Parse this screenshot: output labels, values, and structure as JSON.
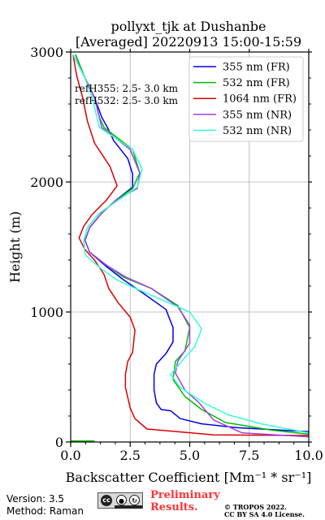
{
  "chart_data": {
    "type": "line",
    "title": "pollyxt_tjk at Dushanbe",
    "subtitle": "[Averaged] 20220913 15:00-15:59",
    "xlabel": "Backscatter Coefficient [Mm⁻¹ * sr⁻¹]",
    "ylabel": "Height (m)",
    "xlim": [
      0,
      10
    ],
    "ylim": [
      0,
      3000
    ],
    "xticks": [
      0,
      2.5,
      5,
      7.5,
      10
    ],
    "xtick_labels": [
      "0.0",
      "2.5",
      "5.0",
      "7.5",
      "10.0"
    ],
    "yticks": [
      0,
      1000,
      2000,
      3000
    ],
    "ytick_labels": [
      "0",
      "1000",
      "2000",
      "3000"
    ],
    "grid": true,
    "legend_position": "top-right",
    "annotations": [
      "refH355:  2.5- 3.0 km",
      "refH532:  2.5- 3.0 km"
    ],
    "series": [
      {
        "name": "355 nm (FR)",
        "color": "#0000ee",
        "points": [
          [
            10.0,
            80
          ],
          [
            7.0,
            110
          ],
          [
            5.5,
            140
          ],
          [
            4.6,
            180
          ],
          [
            4.2,
            240
          ],
          [
            3.8,
            250
          ],
          [
            3.6,
            300
          ],
          [
            3.5,
            400
          ],
          [
            3.5,
            520
          ],
          [
            3.6,
            600
          ],
          [
            4.0,
            680
          ],
          [
            4.3,
            770
          ],
          [
            4.3,
            880
          ],
          [
            4.0,
            1020
          ],
          [
            3.0,
            1150
          ],
          [
            2.2,
            1250
          ],
          [
            1.5,
            1350
          ],
          [
            0.8,
            1460
          ],
          [
            0.6,
            1550
          ],
          [
            0.8,
            1650
          ],
          [
            1.3,
            1760
          ],
          [
            1.9,
            1860
          ],
          [
            2.6,
            1960
          ],
          [
            2.6,
            2060
          ],
          [
            2.4,
            2180
          ],
          [
            1.8,
            2320
          ],
          [
            1.6,
            2400
          ],
          [
            1.3,
            2500
          ],
          [
            1.0,
            2650
          ],
          [
            0.6,
            2800
          ],
          [
            0.2,
            2980
          ]
        ]
      },
      {
        "name": "532 nm (FR)",
        "color": "#00bb00",
        "points": [
          [
            10.0,
            60
          ],
          [
            8.5,
            90
          ],
          [
            6.5,
            150
          ],
          [
            5.5,
            250
          ],
          [
            4.8,
            350
          ],
          [
            4.3,
            480
          ],
          [
            4.4,
            620
          ],
          [
            4.8,
            700
          ],
          [
            5.0,
            880
          ],
          [
            4.5,
            1050
          ],
          [
            3.4,
            1180
          ],
          [
            2.2,
            1270
          ],
          [
            1.5,
            1360
          ],
          [
            0.8,
            1460
          ],
          [
            0.6,
            1550
          ],
          [
            0.8,
            1650
          ],
          [
            1.3,
            1760
          ],
          [
            1.9,
            1860
          ],
          [
            2.6,
            1950
          ],
          [
            2.9,
            2070
          ],
          [
            2.6,
            2250
          ],
          [
            1.4,
            2420
          ],
          [
            1.2,
            2500
          ],
          [
            1.0,
            2650
          ],
          [
            0.6,
            2800
          ],
          [
            0.2,
            2980
          ]
        ]
      },
      {
        "name": "1064 nm (FR)",
        "color": "#dd0000",
        "points": [
          [
            10.0,
            50
          ],
          [
            6.0,
            55
          ],
          [
            3.2,
            100
          ],
          [
            2.7,
            180
          ],
          [
            2.5,
            260
          ],
          [
            2.3,
            420
          ],
          [
            2.3,
            520
          ],
          [
            2.4,
            620
          ],
          [
            2.6,
            690
          ],
          [
            2.7,
            860
          ],
          [
            2.5,
            960
          ],
          [
            2.0,
            1070
          ],
          [
            1.6,
            1180
          ],
          [
            1.4,
            1290
          ],
          [
            1.0,
            1400
          ],
          [
            0.6,
            1480
          ],
          [
            0.35,
            1570
          ],
          [
            0.55,
            1660
          ],
          [
            0.9,
            1750
          ],
          [
            1.5,
            1860
          ],
          [
            1.95,
            1970
          ],
          [
            1.65,
            2120
          ],
          [
            1.0,
            2300
          ],
          [
            0.7,
            2470
          ],
          [
            0.5,
            2650
          ],
          [
            0.25,
            2820
          ],
          [
            0.1,
            2980
          ]
        ]
      },
      {
        "name": "355 nm (NR)",
        "color": "#a040e0",
        "points": [
          [
            10.0,
            40
          ],
          [
            7.2,
            70
          ],
          [
            6.0,
            170
          ],
          [
            5.4,
            300
          ],
          [
            4.8,
            400
          ],
          [
            4.4,
            530
          ],
          [
            4.5,
            620
          ],
          [
            5.0,
            760
          ],
          [
            5.0,
            900
          ],
          [
            4.5,
            1040
          ],
          [
            3.4,
            1180
          ],
          [
            2.3,
            1270
          ],
          [
            1.5,
            1360
          ],
          [
            0.8,
            1460
          ],
          [
            0.6,
            1550
          ],
          [
            0.8,
            1650
          ],
          [
            1.3,
            1760
          ],
          [
            1.9,
            1860
          ],
          [
            2.8,
            1950
          ],
          [
            2.9,
            2070
          ],
          [
            2.5,
            2250
          ],
          [
            1.3,
            2420
          ],
          [
            1.2,
            2500
          ],
          [
            1.0,
            2650
          ],
          [
            0.6,
            2800
          ],
          [
            0.1,
            2980
          ]
        ]
      },
      {
        "name": "532 nm (NR)",
        "color": "#33ffd8",
        "points": [
          [
            10.0,
            70
          ],
          [
            8.0,
            140
          ],
          [
            6.6,
            210
          ],
          [
            5.6,
            300
          ],
          [
            4.6,
            420
          ],
          [
            4.2,
            520
          ],
          [
            4.8,
            650
          ],
          [
            5.2,
            730
          ],
          [
            5.5,
            870
          ],
          [
            5.0,
            1000
          ],
          [
            3.0,
            1160
          ],
          [
            2.0,
            1240
          ],
          [
            1.3,
            1330
          ],
          [
            0.6,
            1440
          ],
          [
            0.55,
            1550
          ],
          [
            0.7,
            1650
          ],
          [
            1.2,
            1760
          ],
          [
            2.0,
            1860
          ],
          [
            2.8,
            1960
          ],
          [
            3.0,
            2100
          ],
          [
            2.6,
            2250
          ],
          [
            1.2,
            2420
          ],
          [
            1.1,
            2500
          ],
          [
            0.9,
            2650
          ],
          [
            0.6,
            2800
          ],
          [
            0.1,
            2980
          ]
        ]
      }
    ]
  },
  "footer": {
    "version": "Version: 3.5",
    "method": "Method: Raman",
    "preliminary_line1": "Preliminary",
    "preliminary_line2": "Results.",
    "copyright_line1": "© TROPOS 2022.",
    "copyright_line2": "CC BY SA 4.0 License."
  },
  "license_badge": {
    "icon": "cc-by-sa-icon",
    "label": "cc"
  }
}
